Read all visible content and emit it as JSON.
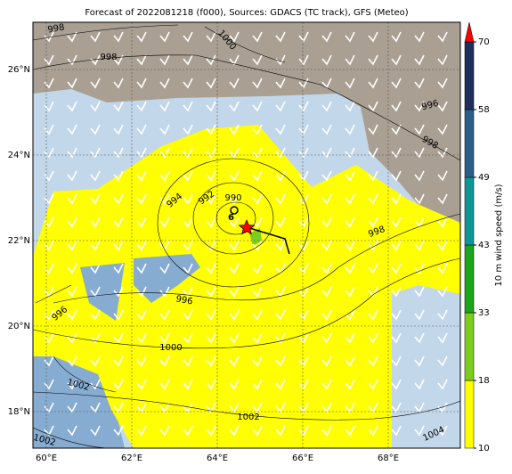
{
  "title": "Forecast of 2022081218 (f000), Sources: GDACS (TC track), GFS (Meteo)",
  "lon_labels": [
    "60°E",
    "62°E",
    "64°E",
    "66°E",
    "68°E"
  ],
  "lat_labels": [
    "26°N",
    "24°N",
    "22°N",
    "20°N",
    "18°N"
  ],
  "contour_labels": [
    998,
    998,
    1000,
    996,
    998,
    994,
    992,
    990,
    998,
    996,
    996,
    1000,
    1002,
    1002,
    1002,
    1004
  ],
  "colorbar": {
    "label": "10 m wind speed (m/s)",
    "ticks": [
      10,
      18,
      33,
      43,
      49,
      58,
      70
    ],
    "colors": [
      "#ffff00",
      "#7ccd1e",
      "#1aa51a",
      "#0e9696",
      "#2a5f8a",
      "#1e2f5e"
    ],
    "extend_color": "#ff0000"
  }
}
